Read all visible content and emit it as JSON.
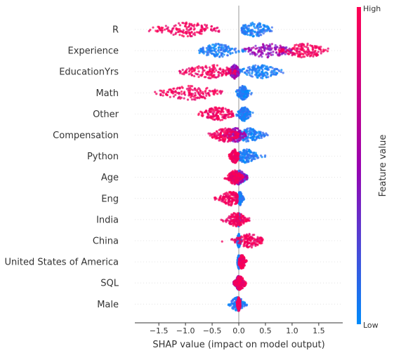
{
  "chart_data": {
    "type": "scatter",
    "subtype": "shap-beeswarm-summary",
    "title": "",
    "xlabel": "SHAP value (impact on model output)",
    "ylabel": "",
    "xlim": [
      -1.95,
      1.95
    ],
    "x_ticks": [
      -1.5,
      -1.0,
      -0.5,
      0.0,
      0.5,
      1.0,
      1.5
    ],
    "x_tick_labels": [
      "−1.5",
      "−1.0",
      "−0.5",
      "0.0",
      "0.5",
      "1.0",
      "1.5"
    ],
    "grid": false,
    "colorbar": {
      "label": "Feature value",
      "high_label": "High",
      "low_label": "Low",
      "low_color": "#008bfb",
      "high_color": "#ff0052",
      "mid_color": "#9a00b0",
      "placement": "right"
    },
    "features": [
      {
        "name": "R",
        "low": {
          "min": 0.05,
          "max": 0.65,
          "center": 0.3,
          "spread": 0.2
        },
        "high": {
          "min": -1.75,
          "max": -0.35,
          "center": -0.95,
          "spread": 0.35
        }
      },
      {
        "name": "Experience",
        "low": {
          "min": -0.75,
          "max": 0.15,
          "center": -0.4,
          "spread": 0.2
        },
        "mid": {
          "min": 0.1,
          "max": 1.0,
          "center": 0.55,
          "spread": 0.25
        },
        "high": {
          "min": 0.75,
          "max": 1.75,
          "center": 1.25,
          "spread": 0.25
        }
      },
      {
        "name": "EducationYrs",
        "low": {
          "min": 0.0,
          "max": 0.85,
          "center": 0.4,
          "spread": 0.2
        },
        "mid": {
          "min": -0.2,
          "max": 0.0,
          "center": -0.08,
          "spread": 0.06
        },
        "high": {
          "min": -1.15,
          "max": -0.05,
          "center": -0.55,
          "spread": 0.3
        }
      },
      {
        "name": "Math",
        "low": {
          "min": -0.05,
          "max": 0.3,
          "center": 0.08,
          "spread": 0.07
        },
        "high": {
          "min": -1.6,
          "max": -0.3,
          "center": -0.9,
          "spread": 0.35
        }
      },
      {
        "name": "Other",
        "low": {
          "min": -0.05,
          "max": 0.35,
          "center": 0.1,
          "spread": 0.07
        },
        "high": {
          "min": -0.8,
          "max": -0.1,
          "center": -0.4,
          "spread": 0.18
        }
      },
      {
        "name": "Compensation",
        "low": {
          "min": -0.05,
          "max": 0.55,
          "center": 0.2,
          "spread": 0.15
        },
        "mid": {
          "min": -0.3,
          "max": 0.15,
          "center": -0.05,
          "spread": 0.1
        },
        "high": {
          "min": -0.65,
          "max": 0.0,
          "center": -0.25,
          "spread": 0.15
        }
      },
      {
        "name": "Python",
        "low": {
          "min": 0.0,
          "max": 0.5,
          "center": 0.15,
          "spread": 0.12
        },
        "high": {
          "min": -0.2,
          "max": 0.0,
          "center": -0.08,
          "spread": 0.05
        }
      },
      {
        "name": "Age",
        "low": {
          "min": -0.15,
          "max": 0.25,
          "center": 0.0,
          "spread": 0.08
        },
        "mid": {
          "min": -0.2,
          "max": 0.2,
          "center": 0.0,
          "spread": 0.08
        },
        "high": {
          "min": -0.35,
          "max": 0.1,
          "center": -0.08,
          "spread": 0.08
        }
      },
      {
        "name": "Eng",
        "low": {
          "min": -0.05,
          "max": 0.1,
          "center": 0.02,
          "spread": 0.03
        },
        "high": {
          "min": -0.55,
          "max": -0.02,
          "center": -0.15,
          "spread": 0.12
        }
      },
      {
        "name": "India",
        "low": {
          "min": -0.05,
          "max": 0.05,
          "center": 0.0,
          "spread": 0.02
        },
        "high": {
          "min": -0.35,
          "max": 0.2,
          "center": -0.05,
          "spread": 0.12
        }
      },
      {
        "name": "China",
        "low": {
          "min": -0.05,
          "max": 0.05,
          "center": 0.0,
          "spread": 0.02
        },
        "high": {
          "min": -0.4,
          "max": 0.45,
          "center": 0.2,
          "spread": 0.15
        }
      },
      {
        "name": "United States of America",
        "low": {
          "min": -0.03,
          "max": 0.03,
          "center": 0.0,
          "spread": 0.015
        },
        "high": {
          "min": 0.0,
          "max": 0.15,
          "center": 0.06,
          "spread": 0.04
        }
      },
      {
        "name": "SQL",
        "low": {
          "min": -0.1,
          "max": 0.08,
          "center": 0.0,
          "spread": 0.04
        },
        "mid": {
          "min": -0.1,
          "max": 0.1,
          "center": 0.0,
          "spread": 0.04
        },
        "high": {
          "min": -0.1,
          "max": 0.2,
          "center": 0.02,
          "spread": 0.06
        }
      },
      {
        "name": "Male",
        "low": {
          "min": -0.2,
          "max": 0.25,
          "center": -0.03,
          "spread": 0.08
        },
        "high": {
          "min": -0.05,
          "max": 0.03,
          "center": 0.0,
          "spread": 0.02
        }
      }
    ]
  }
}
